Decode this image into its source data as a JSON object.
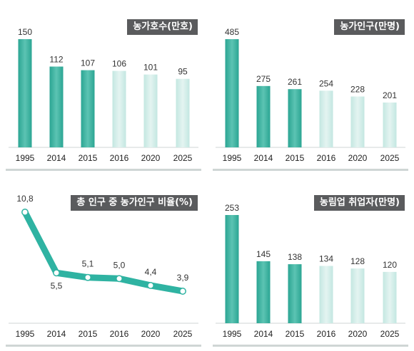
{
  "colors": {
    "bar_dark_top": "#5cc4b3",
    "bar_dark_mid": "#2ba593",
    "bar_light_top": "#e4f4f1",
    "bar_light_mid": "#c3e7e1",
    "line": "#2fb3a2",
    "marker_fill": "#ffffff",
    "title_bg": "#5a5b5d",
    "baseline": "#cfd6d5"
  },
  "chart_data": [
    {
      "type": "bar",
      "title": "농가호수(만호)",
      "categories": [
        "1995",
        "2014",
        "2015",
        "2016",
        "2020",
        "2025"
      ],
      "values": [
        150,
        112,
        107,
        106,
        101,
        95
      ],
      "value_labels": [
        "150",
        "112",
        "107",
        "106",
        "101",
        "95"
      ],
      "ylim": [
        0,
        150
      ],
      "projected_from_index": 3
    },
    {
      "type": "bar",
      "title": "농가인구(만명)",
      "categories": [
        "1995",
        "2014",
        "2015",
        "2016",
        "2020",
        "2025"
      ],
      "values": [
        485,
        275,
        261,
        254,
        228,
        201
      ],
      "value_labels": [
        "485",
        "275",
        "261",
        "254",
        "228",
        "201"
      ],
      "ylim": [
        0,
        485
      ],
      "projected_from_index": 3
    },
    {
      "type": "line",
      "title": "총 인구 중 농가인구 비율(%)",
      "categories": [
        "1995",
        "2014",
        "2015",
        "2016",
        "2020",
        "2025"
      ],
      "values": [
        10.8,
        5.5,
        5.1,
        5.0,
        4.4,
        3.9
      ],
      "value_labels": [
        "10,8",
        "5,5",
        "5,1",
        "5,0",
        "4,4",
        "3,9"
      ]
    },
    {
      "type": "bar",
      "title": "농림업 취업자(만명)",
      "categories": [
        "1995",
        "2014",
        "2015",
        "2016",
        "2020",
        "2025"
      ],
      "values": [
        253,
        145,
        138,
        134,
        128,
        120
      ],
      "value_labels": [
        "253",
        "145",
        "138",
        "134",
        "128",
        "120"
      ],
      "ylim": [
        0,
        253
      ],
      "projected_from_index": 3
    }
  ]
}
